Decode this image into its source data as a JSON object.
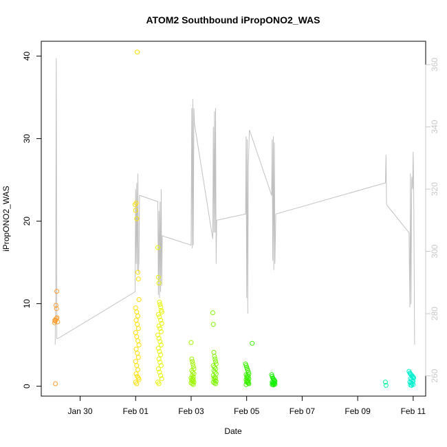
{
  "chart_data": {
    "type": "scatter",
    "title": "ATOM2 Southbound iPropONO2_WAS",
    "xlabel": "Date",
    "ylabel": "iPropONO2_WAS",
    "x_ticks": [
      {
        "day": 30,
        "label": "Jan 30"
      },
      {
        "day": 32,
        "label": "Feb 01"
      },
      {
        "day": 34,
        "label": "Feb 03"
      },
      {
        "day": 36,
        "label": "Feb 05"
      },
      {
        "day": 38,
        "label": "Feb 07"
      },
      {
        "day": 40,
        "label": "Feb 09"
      },
      {
        "day": 42,
        "label": "Feb 11"
      }
    ],
    "xlim": [
      28.6,
      42.45
    ],
    "ylim": [
      -1.2,
      41.8
    ],
    "y_ticks": [
      0,
      10,
      20,
      30,
      40
    ],
    "y2lim": [
      253.5,
      367.5
    ],
    "y2_ticks": [
      260,
      280,
      300,
      320,
      340,
      360
    ],
    "line_color": "#c0c0c0",
    "point_groups": [
      {
        "color": "#ff9d2e",
        "x": [
          29.08,
          29.1,
          29.12,
          29.14,
          29.16,
          29.09,
          29.13,
          29.15,
          29.17,
          29.11,
          29.19
        ],
        "y": [
          7.7,
          7.9,
          8.0,
          8.2,
          11.5,
          8.0,
          9.8,
          9.4,
          8.3,
          0.3,
          7.8
        ]
      },
      {
        "color": "#ffdf00",
        "x": [
          31.98,
          32.0,
          32.02,
          32.04,
          32.06,
          32.08,
          32.1,
          32.12,
          32.0,
          32.04,
          32.08,
          32.02,
          32.06,
          32.1,
          32.0,
          32.04,
          32.08,
          32.12,
          32.02,
          32.06,
          32.1,
          32.0,
          32.04,
          32.08,
          32.02,
          32.06,
          32.1,
          32.12,
          32.0,
          32.04
        ],
        "y": [
          22.0,
          21.3,
          22.2,
          20.3,
          40.5,
          13.8,
          13.0,
          10.5,
          9.5,
          9.0,
          8.5,
          8.0,
          7.5,
          7.0,
          6.5,
          6.0,
          5.5,
          5.0,
          4.5,
          4.0,
          3.5,
          3.0,
          2.5,
          2.0,
          1.5,
          1.2,
          1.0,
          0.8,
          0.5,
          0.3
        ]
      },
      {
        "color": "#e9f500",
        "x": [
          32.8,
          32.82,
          32.84,
          32.86,
          32.88,
          32.9,
          32.92,
          32.94,
          32.82,
          32.86,
          32.9,
          32.94,
          32.84,
          32.88,
          32.92,
          32.8,
          32.84,
          32.88,
          32.92,
          32.82,
          32.86,
          32.9,
          32.84,
          32.88,
          32.92,
          32.82,
          32.86,
          32.9,
          32.94,
          32.8,
          32.84
        ],
        "y": [
          16.8,
          13.2,
          12.5,
          10.2,
          9.9,
          9.6,
          9.2,
          9.0,
          8.7,
          8.4,
          8.0,
          7.6,
          7.3,
          7.0,
          6.6,
          6.2,
          5.8,
          5.4,
          5.0,
          4.6,
          4.2,
          3.8,
          3.3,
          2.9,
          2.5,
          2.1,
          1.7,
          1.3,
          0.9,
          0.5,
          0.3
        ]
      },
      {
        "color": "#9ef500",
        "x": [
          34.0,
          34.02,
          34.04,
          34.06,
          34.08,
          34.1,
          34.02,
          34.06,
          34.1,
          34.04,
          34.08,
          34.0,
          34.04,
          34.08,
          34.02,
          34.06,
          34.1,
          34.0,
          34.04,
          34.08
        ],
        "y": [
          5.3,
          3.3,
          3.0,
          2.7,
          2.4,
          2.1,
          1.9,
          1.7,
          1.5,
          1.3,
          1.1,
          1.0,
          0.9,
          0.8,
          0.7,
          0.6,
          0.5,
          0.4,
          0.3,
          0.2
        ]
      },
      {
        "color": "#7df500",
        "x": [
          34.78,
          34.8,
          34.82,
          34.84,
          34.86,
          34.88,
          34.9,
          34.8,
          34.84,
          34.88,
          34.82,
          34.86,
          34.9,
          34.8,
          34.84,
          34.88,
          34.82,
          34.86,
          34.9,
          34.8,
          34.84,
          34.88
        ],
        "y": [
          8.9,
          7.5,
          4.1,
          3.6,
          3.3,
          3.0,
          2.7,
          2.5,
          2.3,
          2.1,
          1.9,
          1.7,
          1.5,
          1.3,
          1.1,
          1.0,
          0.9,
          0.7,
          0.6,
          0.5,
          0.4,
          0.3
        ]
      },
      {
        "color": "#3af000",
        "x": [
          35.96,
          35.98,
          36.0,
          36.02,
          36.04,
          36.06,
          36.08,
          35.98,
          36.02,
          36.06,
          36.0,
          36.04,
          36.08,
          35.98,
          36.02,
          36.06,
          36.0,
          36.04,
          36.08,
          35.98,
          36.02,
          36.06,
          36.2
        ],
        "y": [
          2.7,
          2.5,
          2.3,
          2.1,
          1.9,
          1.7,
          1.5,
          1.4,
          1.3,
          1.2,
          1.1,
          1.0,
          0.9,
          0.8,
          0.7,
          0.6,
          0.5,
          0.4,
          0.3,
          0.2,
          0.6,
          0.4,
          5.2
        ]
      },
      {
        "color": "#14f000",
        "x": [
          36.9,
          36.92,
          36.94,
          36.96,
          36.98,
          37.0,
          37.02,
          36.92,
          36.96,
          37.0,
          36.94,
          36.98,
          37.02,
          36.92,
          36.96
        ],
        "y": [
          1.4,
          1.2,
          1.0,
          0.9,
          0.8,
          0.7,
          0.6,
          0.5,
          0.45,
          0.4,
          0.35,
          0.3,
          0.25,
          0.2,
          0.15
        ]
      },
      {
        "color": "#00f0a0",
        "x": [
          41.0,
          41.02
        ],
        "y": [
          0.5,
          0.1
        ]
      },
      {
        "color": "#00f0d0",
        "x": [
          41.85,
          41.88,
          41.9,
          41.92,
          41.95,
          41.98,
          42.0,
          42.02,
          41.9,
          41.94,
          41.98,
          42.0,
          41.88,
          41.92,
          41.96,
          42.0,
          41.9,
          41.94
        ],
        "y": [
          1.8,
          1.6,
          1.5,
          1.4,
          1.3,
          1.2,
          1.1,
          1.0,
          0.9,
          0.8,
          0.7,
          0.6,
          0.5,
          0.4,
          0.3,
          0.2,
          0.15,
          0.1
        ]
      }
    ],
    "line_points": [
      [
        29.1,
        270
      ],
      [
        29.12,
        285
      ],
      [
        29.14,
        362
      ],
      [
        29.16,
        272
      ],
      [
        29.2,
        272
      ],
      [
        31.98,
        287
      ],
      [
        32.0,
        320
      ],
      [
        32.02,
        296
      ],
      [
        32.04,
        322
      ],
      [
        32.06,
        294
      ],
      [
        32.08,
        325
      ],
      [
        32.1,
        293
      ],
      [
        32.12,
        297
      ],
      [
        32.14,
        318
      ],
      [
        32.8,
        316
      ],
      [
        32.82,
        286
      ],
      [
        32.84,
        313
      ],
      [
        32.86,
        285
      ],
      [
        32.88,
        316
      ],
      [
        32.9,
        287
      ],
      [
        32.92,
        320
      ],
      [
        32.94,
        289
      ],
      [
        32.96,
        305
      ],
      [
        34.0,
        302
      ],
      [
        34.02,
        346
      ],
      [
        34.04,
        301
      ],
      [
        34.06,
        349
      ],
      [
        34.08,
        302
      ],
      [
        34.1,
        346
      ],
      [
        34.12,
        341
      ],
      [
        34.78,
        304
      ],
      [
        34.8,
        340
      ],
      [
        34.82,
        306
      ],
      [
        34.84,
        345
      ],
      [
        34.86,
        306
      ],
      [
        34.88,
        346
      ],
      [
        34.9,
        296
      ],
      [
        34.92,
        310
      ],
      [
        35.96,
        312
      ],
      [
        35.98,
        337
      ],
      [
        36.0,
        285
      ],
      [
        36.02,
        336
      ],
      [
        36.04,
        280
      ],
      [
        36.06,
        328
      ],
      [
        36.1,
        339
      ],
      [
        36.14,
        338
      ],
      [
        36.9,
        318
      ],
      [
        36.92,
        336
      ],
      [
        36.94,
        297
      ],
      [
        36.96,
        337
      ],
      [
        36.98,
        294
      ],
      [
        37.0,
        335
      ],
      [
        37.02,
        296
      ],
      [
        37.05,
        312
      ],
      [
        41.0,
        322
      ],
      [
        41.02,
        331
      ],
      [
        41.04,
        315
      ],
      [
        41.85,
        306
      ],
      [
        41.88,
        282
      ],
      [
        41.9,
        325
      ],
      [
        41.92,
        283
      ],
      [
        41.95,
        324
      ],
      [
        41.98,
        320
      ],
      [
        42.0,
        332
      ],
      [
        42.02,
        320
      ],
      [
        42.05,
        270
      ]
    ]
  }
}
